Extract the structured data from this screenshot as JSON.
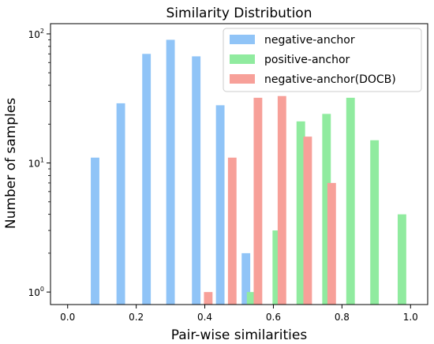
{
  "chart_data": {
    "type": "bar",
    "title": "Similarity Distribution",
    "xlabel": "Pair-wise similarities",
    "ylabel": "Number of samples",
    "xlim": [
      -0.05,
      1.05
    ],
    "ylim": [
      0.8,
      120
    ],
    "yscale": "log",
    "bar_width": 0.025,
    "xticks": [
      {
        "value": 0.0,
        "label": "0.0"
      },
      {
        "value": 0.2,
        "label": "0.2"
      },
      {
        "value": 0.4,
        "label": "0.4"
      },
      {
        "value": 0.6,
        "label": "0.6"
      },
      {
        "value": 0.8,
        "label": "0.8"
      },
      {
        "value": 1.0,
        "label": "1.0"
      }
    ],
    "yticks": [
      {
        "value": 1,
        "base": "10",
        "exp": "0"
      },
      {
        "value": 10,
        "base": "10",
        "exp": "1"
      },
      {
        "value": 100,
        "base": "10",
        "exp": "2"
      }
    ],
    "legend_position": "top-right",
    "series": [
      {
        "name": "negative-anchor",
        "color": "#90c4f7",
        "x": [
          0.08,
          0.155,
          0.23,
          0.3,
          0.375,
          0.445,
          0.52
        ],
        "values": [
          11,
          29,
          70,
          90,
          67,
          28,
          2
        ]
      },
      {
        "name": "positive-anchor",
        "color": "#90eb9f",
        "x": [
          0.535,
          0.61,
          0.68,
          0.755,
          0.825,
          0.895,
          0.975
        ],
        "values": [
          1,
          3,
          21,
          24,
          32,
          15,
          4
        ]
      },
      {
        "name": "negative-anchor(DOCB)",
        "color": "#f7a099",
        "x": [
          0.41,
          0.48,
          0.555,
          0.625,
          0.7,
          0.77
        ],
        "values": [
          1,
          11,
          32,
          33,
          16,
          7
        ]
      }
    ]
  }
}
